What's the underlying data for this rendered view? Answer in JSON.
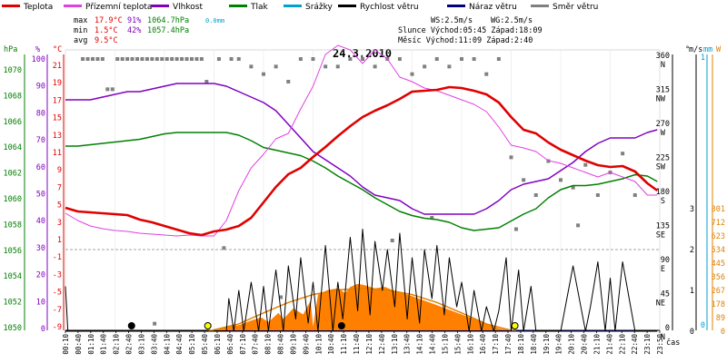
{
  "header": {
    "legend": [
      {
        "label": "Teplota",
        "color": "#e00000"
      },
      {
        "label": "Přízemní teplota",
        "color": "#e040e0"
      },
      {
        "label": "Vlhkost",
        "color": "#8000c0"
      },
      {
        "label": "Tlak",
        "color": "#008000"
      },
      {
        "label": "Srážky",
        "color": "#00a0d0"
      },
      {
        "label": "Rychlost větru",
        "color": "#000000"
      },
      {
        "label": "Náraz větru",
        "color": "#000080"
      },
      {
        "label": "Směr větru",
        "color": "#808080"
      }
    ],
    "stats": {
      "max_label": "max",
      "max_t": "17.9°C",
      "max_h": "91%",
      "max_p": "1064.7hPa",
      "max_r": "0.0mm",
      "min_label": "min",
      "min_t": "1.5°C",
      "min_h": "42%",
      "min_p": "1057.4hPa",
      "avg_label": "avg",
      "avg_t": "9.5°C"
    },
    "wind": {
      "ws": "WS:2.5m/s",
      "wg": "WG:2.5m/s"
    },
    "sun": "Slunce Východ:05:45  Západ:18:09",
    "moon": "Měsíc  Východ:11:09  Západ:2:40"
  },
  "chart_data": {
    "type": "line",
    "title": "24.3.2010",
    "xlabel": "čas",
    "x_ticks": [
      "00:10",
      "00:40",
      "01:10",
      "01:40",
      "02:10",
      "02:40",
      "03:10",
      "03:40",
      "04:10",
      "04:40",
      "05:10",
      "05:40",
      "06:10",
      "06:40",
      "07:10",
      "07:40",
      "08:10",
      "08:40",
      "09:10",
      "09:40",
      "10:10",
      "10:40",
      "11:10",
      "11:40",
      "12:10",
      "12:40",
      "13:10",
      "13:40",
      "14:10",
      "14:40",
      "15:10",
      "15:40",
      "16:10",
      "16:40",
      "17:10",
      "17:40",
      "18:10",
      "18:40",
      "19:10",
      "19:40",
      "20:10",
      "20:40",
      "21:10",
      "21:40",
      "22:10",
      "22:40",
      "23:10",
      "23:50"
    ],
    "axes": {
      "pressure": {
        "label": "hPa",
        "color": "#008000",
        "ticks": [
          "1070",
          "1068",
          "1066",
          "1064",
          "1062",
          "1060",
          "1058",
          "1056",
          "1054",
          "1052",
          "1050"
        ]
      },
      "humidity": {
        "label": "%",
        "color": "#8000c0",
        "ticks": [
          "100",
          "90",
          "80",
          "70",
          "60",
          "50",
          "40",
          "30",
          "20",
          "10",
          "0"
        ]
      },
      "temperature": {
        "label": "°C",
        "color": "#e00000",
        "ticks": [
          "21",
          "19",
          "17",
          "15",
          "13",
          "11",
          "9",
          "7",
          "5",
          "3",
          "1",
          "-1",
          "-3",
          "-5",
          "-7",
          "-9"
        ]
      },
      "direction": {
        "label": "°",
        "color": "#000000",
        "ticks": [
          "360 N",
          "315 NW",
          "270 W",
          "225 SW",
          "180 S",
          "135 SE",
          "90 E",
          "45 NE",
          "0 N"
        ]
      },
      "wind_speed": {
        "label": "m/s",
        "color": "#000000",
        "ticks": [
          "3",
          "2",
          "1",
          "0"
        ]
      },
      "precipitation": {
        "label": "mm",
        "color": "#00a0d0",
        "ticks": [
          "1",
          "0"
        ]
      },
      "solar": {
        "label": "W",
        "color": "#e08000",
        "ticks": [
          "801",
          "712",
          "623",
          "534",
          "445",
          "356",
          "267",
          "178",
          "89",
          "0"
        ]
      }
    },
    "series": [
      {
        "name": "Teplota",
        "color": "#e00000",
        "x": [
          0,
          0.5,
          1,
          1.5,
          2,
          2.5,
          3,
          3.5,
          4,
          4.5,
          5,
          5.5,
          6,
          6.5,
          7,
          7.5,
          8,
          8.5,
          9,
          9.5,
          10,
          10.5,
          11,
          11.5,
          12,
          12.5,
          13,
          13.5,
          14,
          14.5,
          15,
          15.5,
          16,
          16.5,
          17,
          17.5,
          18,
          18.5,
          19,
          19.5,
          20,
          20.5,
          21,
          21.5,
          22,
          22.5,
          23,
          23.5,
          23.9
        ],
        "y": [
          4.6,
          4.2,
          4.1,
          4.0,
          3.9,
          3.8,
          3.3,
          3.0,
          2.6,
          2.2,
          1.8,
          1.6,
          2.0,
          2.2,
          2.6,
          3.5,
          5.2,
          6.9,
          8.3,
          9.0,
          10.2,
          11.3,
          12.5,
          13.6,
          14.6,
          15.3,
          15.9,
          16.6,
          17.4,
          17.5,
          17.6,
          17.9,
          17.8,
          17.5,
          17.1,
          16.2,
          14.6,
          13.2,
          12.8,
          11.8,
          11.0,
          10.4,
          9.8,
          9.3,
          9.1,
          9.2,
          8.6,
          7.3,
          6.5
        ]
      },
      {
        "name": "Přízemní teplota",
        "color": "#e040e0",
        "x": [
          0,
          0.5,
          1,
          1.5,
          2,
          2.5,
          3,
          3.5,
          4,
          4.5,
          5,
          5.5,
          6,
          6.5,
          7,
          7.5,
          8,
          8.5,
          9,
          9.5,
          10,
          10.5,
          11,
          11.5,
          12,
          12.5,
          13,
          13.5,
          14,
          14.5,
          15,
          15.5,
          16,
          16.5,
          17,
          17.5,
          18,
          18.5,
          19,
          19.5,
          20,
          20.5,
          21,
          21.5,
          22,
          22.5,
          23,
          23.5,
          23.9
        ],
        "y": [
          4.0,
          3.2,
          2.6,
          2.3,
          2.1,
          2.0,
          1.8,
          1.7,
          1.6,
          1.5,
          1.6,
          1.5,
          1.5,
          3.2,
          6.5,
          9.0,
          10.5,
          12.2,
          12.8,
          15.5,
          18.0,
          21.5,
          22.5,
          22.0,
          20.5,
          22.0,
          21.0,
          19.0,
          18.5,
          17.8,
          17.5,
          17.0,
          16.5,
          16.0,
          15.2,
          13.5,
          11.5,
          11.2,
          10.8,
          9.8,
          9.5,
          9.0,
          8.5,
          8.0,
          8.5,
          8.0,
          7.5,
          6.0,
          6.0
        ]
      },
      {
        "name": "Vlhkost",
        "color": "#8000c0",
        "x": [
          0,
          0.5,
          1,
          1.5,
          2,
          2.5,
          3,
          3.5,
          4,
          4.5,
          5,
          5.5,
          6,
          6.5,
          7,
          7.5,
          8,
          8.5,
          9,
          9.5,
          10,
          10.5,
          11,
          11.5,
          12,
          12.5,
          13,
          13.5,
          14,
          14.5,
          15,
          15.5,
          16,
          16.5,
          17,
          17.5,
          18,
          18.5,
          19,
          19.5,
          20,
          20.5,
          21,
          21.5,
          22,
          22.5,
          23,
          23.5,
          23.9
        ],
        "y": [
          85,
          85,
          85,
          86,
          87,
          88,
          88,
          89,
          90,
          91,
          91,
          91,
          91,
          90,
          88,
          86,
          84,
          81,
          76,
          71,
          66,
          63,
          60,
          57,
          53,
          50,
          49,
          48,
          45,
          43,
          43,
          43,
          43,
          43,
          45,
          48,
          52,
          54,
          55,
          56,
          59,
          62,
          66,
          69,
          71,
          71,
          71,
          73,
          74
        ]
      },
      {
        "name": "Tlak",
        "color": "#008000",
        "x": [
          0,
          0.5,
          1,
          1.5,
          2,
          2.5,
          3,
          3.5,
          4,
          4.5,
          5,
          5.5,
          6,
          6.5,
          7,
          7.5,
          8,
          8.5,
          9,
          9.5,
          10,
          10.5,
          11,
          11.5,
          12,
          12.5,
          13,
          13.5,
          14,
          14.5,
          15,
          15.5,
          16,
          16.5,
          17,
          17.5,
          18,
          18.5,
          19,
          19.5,
          20,
          20.5,
          21,
          21.5,
          22,
          22.5,
          23,
          23.5,
          23.9
        ],
        "y": [
          1063.6,
          1063.6,
          1063.7,
          1063.8,
          1063.9,
          1064.0,
          1064.1,
          1064.3,
          1064.5,
          1064.6,
          1064.6,
          1064.6,
          1064.6,
          1064.6,
          1064.4,
          1064.0,
          1063.5,
          1063.3,
          1063.1,
          1062.9,
          1062.5,
          1062.0,
          1061.4,
          1060.9,
          1060.4,
          1059.8,
          1059.3,
          1058.8,
          1058.5,
          1058.3,
          1058.2,
          1058.0,
          1057.6,
          1057.4,
          1057.5,
          1057.6,
          1058.1,
          1058.6,
          1059.0,
          1059.8,
          1060.4,
          1060.7,
          1060.7,
          1060.8,
          1061.0,
          1061.2,
          1061.5,
          1061.4,
          1061.0
        ]
      },
      {
        "name": "Slunce",
        "color": "#e08000",
        "x": [
          5.75,
          7,
          8,
          9,
          10,
          11,
          12,
          13,
          14,
          15,
          16,
          17,
          18.15
        ],
        "y": [
          0,
          48,
          120,
          188,
          240,
          270,
          280,
          270,
          240,
          188,
          120,
          48,
          0
        ]
      },
      {
        "name": "Rychlost větru",
        "color": "#000000",
        "x": [
          0,
          0.1,
          0.25,
          1,
          3,
          5,
          6.5,
          6.6,
          6.8,
          7,
          7.2,
          7.5,
          7.8,
          8.0,
          8.2,
          8.5,
          8.8,
          9.0,
          9.3,
          9.5,
          9.8,
          10.0,
          10.2,
          10.5,
          10.8,
          11.0,
          11.2,
          11.5,
          11.8,
          12.0,
          12.3,
          12.5,
          12.8,
          13.0,
          13.3,
          13.5,
          13.8,
          14.0,
          14.3,
          14.5,
          14.8,
          15.0,
          15.3,
          15.5,
          15.8,
          16.0,
          16.3,
          16.5,
          16.8,
          17.0,
          17.3,
          17.5,
          17.8,
          18.0,
          18.3,
          18.5,
          18.8,
          19.0,
          19.5,
          20.0,
          20.5,
          21.0,
          21.2,
          21.5,
          21.8,
          22.0,
          22.2,
          22.5,
          23.0,
          23.9
        ],
        "y": [
          1.1,
          0.0,
          0.0,
          0.0,
          0.0,
          0.0,
          0.0,
          0.8,
          0.0,
          1.0,
          0.0,
          1.2,
          0.0,
          1.1,
          0.0,
          1.5,
          0.0,
          1.6,
          0.3,
          1.8,
          0.2,
          1.2,
          0.0,
          2.1,
          0.0,
          1.2,
          0.3,
          2.3,
          0.5,
          2.5,
          0.4,
          2.2,
          1.0,
          2.0,
          0.6,
          2.4,
          0.3,
          1.8,
          0.2,
          2.0,
          0.8,
          2.1,
          0.4,
          1.8,
          0.6,
          1.2,
          0.0,
          1.0,
          0.0,
          0.6,
          0.0,
          0.5,
          1.8,
          0.0,
          1.5,
          0.0,
          1.1,
          0.0,
          0.0,
          0.0,
          1.6,
          0.0,
          0.6,
          1.7,
          0.0,
          1.3,
          0.0,
          1.7,
          0.0,
          0.0
        ]
      },
      {
        "name": "Náraz větru",
        "color": "#000080",
        "x": [
          0,
          23.9
        ],
        "y": [
          0,
          0
        ]
      },
      {
        "name": "Směr větru",
        "color": "#808080",
        "x": [
          0.7,
          0.9,
          1.1,
          1.3,
          1.5,
          1.7,
          1.9,
          2.1,
          2.3,
          2.5,
          2.7,
          2.9,
          3.1,
          3.3,
          3.5,
          3.7,
          3.9,
          4.1,
          4.3,
          4.5,
          4.7,
          4.9,
          5.1,
          5.3,
          5.5,
          5.7,
          6.2,
          6.7,
          7.0,
          7.5,
          8.0,
          8.5,
          9.0,
          9.5,
          10.0,
          10.5,
          11.0,
          11.5,
          12.0,
          12.5,
          13.0,
          13.5,
          14.0,
          14.5,
          15.0,
          15.5,
          16.0,
          16.5,
          17.0,
          17.5,
          18.0,
          18.5,
          19.0,
          19.5,
          20.0,
          20.5,
          21.0,
          21.5,
          22.0,
          22.5,
          23.0,
          3.6,
          8.7,
          6.4,
          13.2,
          14.8,
          18.2,
          20.7
        ],
        "y": [
          360,
          360,
          360,
          360,
          360,
          320,
          320,
          360,
          360,
          360,
          360,
          360,
          360,
          360,
          360,
          360,
          360,
          360,
          360,
          360,
          360,
          360,
          360,
          360,
          360,
          330,
          360,
          360,
          360,
          350,
          340,
          350,
          330,
          360,
          360,
          350,
          350,
          360,
          360,
          350,
          360,
          360,
          340,
          350,
          360,
          350,
          360,
          360,
          340,
          360,
          230,
          200,
          180,
          225,
          200,
          190,
          220,
          180,
          210,
          235,
          180,
          10,
          45,
          110,
          120,
          150,
          135,
          140
        ]
      }
    ],
    "markers": [
      {
        "label": "moonset",
        "x": 2.67,
        "shape": "black-dot"
      },
      {
        "label": "sunrise",
        "x": 5.75,
        "shape": "yellow-dot"
      },
      {
        "label": "moonrise",
        "x": 11.15,
        "shape": "black-dot"
      },
      {
        "label": "sunset",
        "x": 18.15,
        "shape": "yellow-dot"
      }
    ]
  }
}
